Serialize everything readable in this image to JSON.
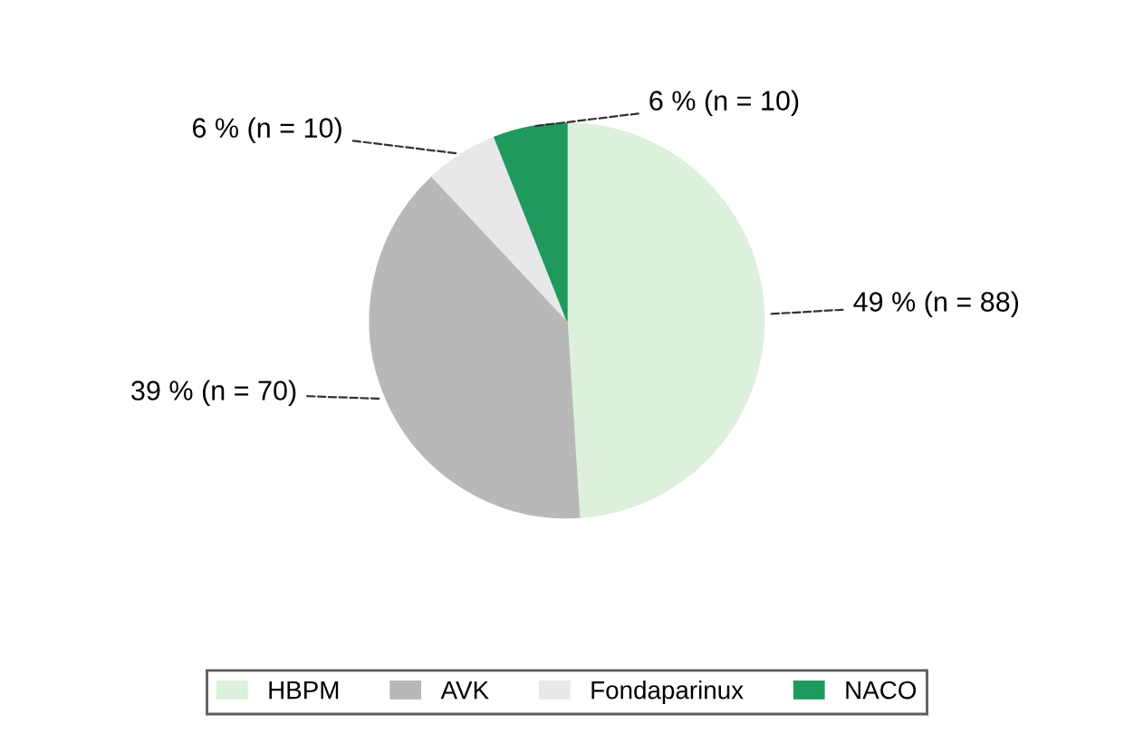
{
  "chart_data": {
    "type": "pie",
    "categories": [
      "HBPM",
      "AVK",
      "Fondaparinux",
      "NACO"
    ],
    "values": [
      49,
      39,
      6,
      6
    ],
    "value_labels": [
      "49 % (n = 88)",
      "39 % (n = 70)",
      "6 % (n = 10)",
      "6 % (n = 10)"
    ],
    "colors": [
      "#dcf0dc",
      "#b8b8b8",
      "#e8e8e8",
      "#1f9a5c"
    ],
    "legend": "bottom"
  }
}
